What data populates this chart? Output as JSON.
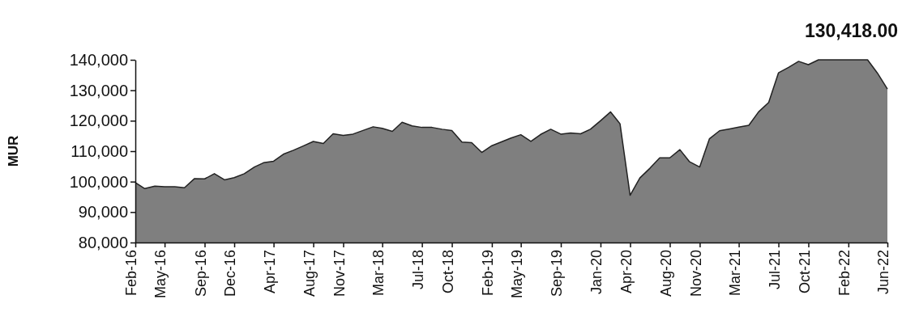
{
  "chart_data": {
    "type": "area",
    "title": "130,418.00",
    "ylabel": "MUR",
    "color": "#7f7f7f",
    "x": [
      "2016-02",
      "2016-03",
      "2016-04",
      "2016-05",
      "2016-06",
      "2016-07",
      "2016-08",
      "2016-09",
      "2016-10",
      "2016-11",
      "2016-12",
      "2017-01",
      "2017-02",
      "2017-03",
      "2017-04",
      "2017-05",
      "2017-06",
      "2017-07",
      "2017-08",
      "2017-09",
      "2017-10",
      "2017-11",
      "2017-12",
      "2018-01",
      "2018-02",
      "2018-03",
      "2018-04",
      "2018-05",
      "2018-06",
      "2018-07",
      "2018-08",
      "2018-09",
      "2018-10",
      "2018-11",
      "2018-12",
      "2019-01",
      "2019-02",
      "2019-03",
      "2019-04",
      "2019-05",
      "2019-06",
      "2019-07",
      "2019-08",
      "2019-09",
      "2019-10",
      "2019-11",
      "2019-12",
      "2020-01",
      "2020-02",
      "2020-03",
      "2020-04",
      "2020-05",
      "2020-06",
      "2020-07",
      "2020-08",
      "2020-09",
      "2020-10",
      "2020-11",
      "2020-12",
      "2021-01",
      "2021-02",
      "2021-03",
      "2021-04",
      "2021-05",
      "2021-06",
      "2021-07",
      "2021-08",
      "2021-09",
      "2021-10",
      "2021-11",
      "2021-12",
      "2022-01",
      "2022-02",
      "2022-03",
      "2022-04",
      "2022-05",
      "2022-06"
    ],
    "values": [
      99700,
      97700,
      98500,
      98300,
      98300,
      98000,
      101000,
      100900,
      102600,
      100600,
      101300,
      102600,
      104800,
      106200,
      106700,
      109000,
      110300,
      111700,
      113200,
      112500,
      115700,
      115200,
      115600,
      116800,
      118000,
      117500,
      116500,
      119500,
      118300,
      117800,
      117800,
      117200,
      116800,
      113000,
      112800,
      109600,
      111800,
      113000,
      114300,
      115400,
      113200,
      115500,
      117200,
      115600,
      116000,
      115700,
      117200,
      120000,
      122900,
      119000,
      95500,
      101200,
      104400,
      107800,
      107800,
      110500,
      106500,
      104800,
      114100,
      116700,
      117300,
      117900,
      118500,
      122900,
      126000,
      135700,
      137500,
      139500,
      138400,
      140000,
      140000,
      140000,
      140000,
      140000,
      140000,
      135700,
      130400
    ],
    "xlim": [
      "2016-02",
      "2022-06"
    ],
    "xticks": [
      {
        "value": "2016-02",
        "label": "Feb-16"
      },
      {
        "value": "2016-05",
        "label": "May-16"
      },
      {
        "value": "2016-09",
        "label": "Sep-16"
      },
      {
        "value": "2016-12",
        "label": "Dec-16"
      },
      {
        "value": "2017-04",
        "label": "Apr-17"
      },
      {
        "value": "2017-08",
        "label": "Aug-17"
      },
      {
        "value": "2017-11",
        "label": "Nov-17"
      },
      {
        "value": "2018-03",
        "label": "Mar-18"
      },
      {
        "value": "2018-07",
        "label": "Jul-18"
      },
      {
        "value": "2018-10",
        "label": "Oct-18"
      },
      {
        "value": "2019-02",
        "label": "Feb-19"
      },
      {
        "value": "2019-05",
        "label": "May-19"
      },
      {
        "value": "2019-09",
        "label": "Sep-19"
      },
      {
        "value": "2020-01",
        "label": "Jan-20"
      },
      {
        "value": "2020-04",
        "label": "Apr-20"
      },
      {
        "value": "2020-08",
        "label": "Aug-20"
      },
      {
        "value": "2020-11",
        "label": "Nov-20"
      },
      {
        "value": "2021-03",
        "label": "Mar-21"
      },
      {
        "value": "2021-07",
        "label": "Jul-21"
      },
      {
        "value": "2021-10",
        "label": "Oct-21"
      },
      {
        "value": "2022-02",
        "label": "Feb-22"
      },
      {
        "value": "2022-06",
        "label": "Jun-22"
      }
    ],
    "ylim": [
      80000,
      140000
    ],
    "yticks": [
      {
        "value": 80000,
        "label": "80,000"
      },
      {
        "value": 90000,
        "label": "90,000"
      },
      {
        "value": 100000,
        "label": "100,000"
      },
      {
        "value": 110000,
        "label": "110,000"
      },
      {
        "value": 120000,
        "label": "120,000"
      },
      {
        "value": 130000,
        "label": "130,000"
      },
      {
        "value": 140000,
        "label": "140,000"
      }
    ],
    "grid": false
  }
}
